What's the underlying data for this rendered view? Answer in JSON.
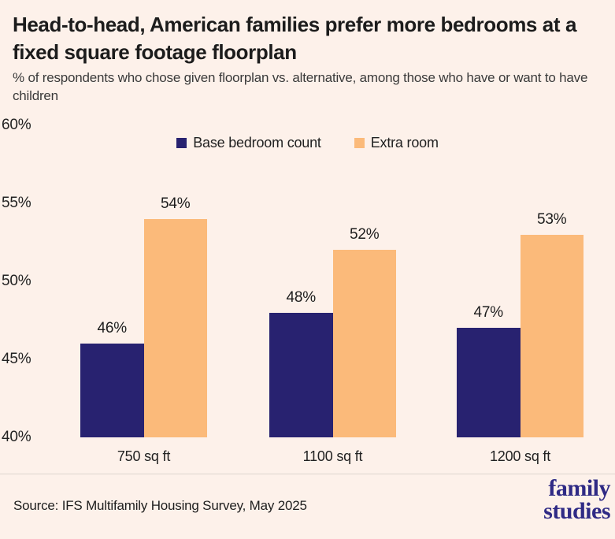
{
  "page": {
    "background": "#fdf1ea"
  },
  "header": {
    "title": "Head-to-head, American families prefer more bedrooms at a fixed square footage floorplan",
    "subtitle": "% of respondents who chose given floorplan vs. alternative, among those who have or want to have children"
  },
  "chart_data": {
    "type": "bar",
    "title": "Head-to-head, American families prefer more bedrooms at a fixed square footage floorplan",
    "subtitle": "% of respondents who chose given floorplan vs. alternative, among those who have or want to have children",
    "categories": [
      "750 sq ft",
      "1100 sq ft",
      "1200 sq ft"
    ],
    "series": [
      {
        "name": "Base bedroom count",
        "color": "#282270",
        "values": [
          46,
          48,
          47
        ]
      },
      {
        "name": "Extra room",
        "color": "#fbba7a",
        "values": [
          54,
          52,
          53
        ]
      }
    ],
    "value_suffix": "%",
    "ylim": [
      40,
      60
    ],
    "yticks": [
      60,
      55,
      50,
      45,
      40
    ],
    "ytick_suffix": "%",
    "grid": false,
    "legend_position": "top-center",
    "xlabel": "",
    "ylabel": ""
  },
  "footer": {
    "source": "Source: IFS Multifamily Housing Survey, May 2025",
    "logo_line1": "family",
    "logo_line2": "studies",
    "logo_color": "#2f2a85"
  }
}
